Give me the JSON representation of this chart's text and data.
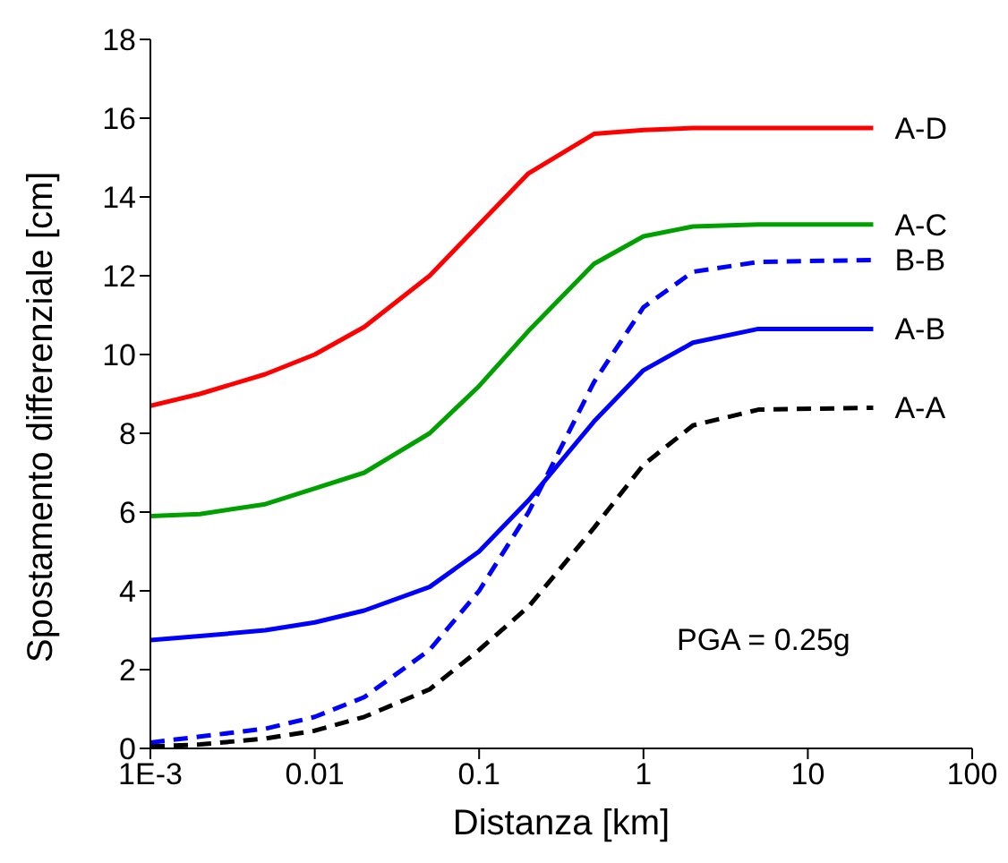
{
  "chart_data": {
    "type": "line",
    "xlabel": "Distanza [km]",
    "ylabel": "Spostamento differenziale [cm]",
    "log": "x",
    "x": [
      0.001,
      0.002,
      0.005,
      0.01,
      0.02,
      0.05,
      0.1,
      0.2,
      0.5,
      1,
      2,
      5,
      25
    ],
    "xlim": [
      0.001,
      100
    ],
    "xticks": [
      {
        "value": 0.001,
        "label": "1E-3"
      },
      0.01,
      0.1,
      1,
      10,
      100
    ],
    "ylim": [
      0,
      18
    ],
    "yticks": [
      0,
      2,
      4,
      6,
      8,
      10,
      12,
      14,
      16,
      18
    ],
    "grid": false,
    "legend": false,
    "marker": "none",
    "series": [
      {
        "name": "A-D",
        "color": "#ff0000",
        "line_style": "solid",
        "values": [
          8.7,
          9.0,
          9.5,
          10.0,
          10.7,
          12.0,
          13.3,
          14.6,
          15.6,
          15.7,
          15.75,
          15.75,
          15.75
        ]
      },
      {
        "name": "A-C",
        "color": "#00a000",
        "line_style": "solid",
        "values": [
          5.9,
          5.95,
          6.2,
          6.6,
          7.0,
          8.0,
          9.2,
          10.6,
          12.3,
          13.0,
          13.25,
          13.3,
          13.3
        ]
      },
      {
        "name": "B-B",
        "color": "#0000ff",
        "line_style": "dashed",
        "values": [
          0.15,
          0.3,
          0.5,
          0.8,
          1.3,
          2.5,
          4.0,
          6.0,
          9.3,
          11.2,
          12.1,
          12.35,
          12.4
        ]
      },
      {
        "name": "A-B",
        "color": "#0000ff",
        "line_style": "solid",
        "values": [
          2.75,
          2.85,
          3.0,
          3.2,
          3.5,
          4.1,
          5.0,
          6.3,
          8.3,
          9.6,
          10.3,
          10.65,
          10.65
        ]
      },
      {
        "name": "A-A",
        "color": "#000000",
        "line_style": "dashed",
        "values": [
          0.05,
          0.1,
          0.25,
          0.45,
          0.8,
          1.5,
          2.5,
          3.6,
          5.6,
          7.2,
          8.2,
          8.6,
          8.65
        ]
      }
    ],
    "annotations": [
      "PGA = 0.25g"
    ]
  }
}
